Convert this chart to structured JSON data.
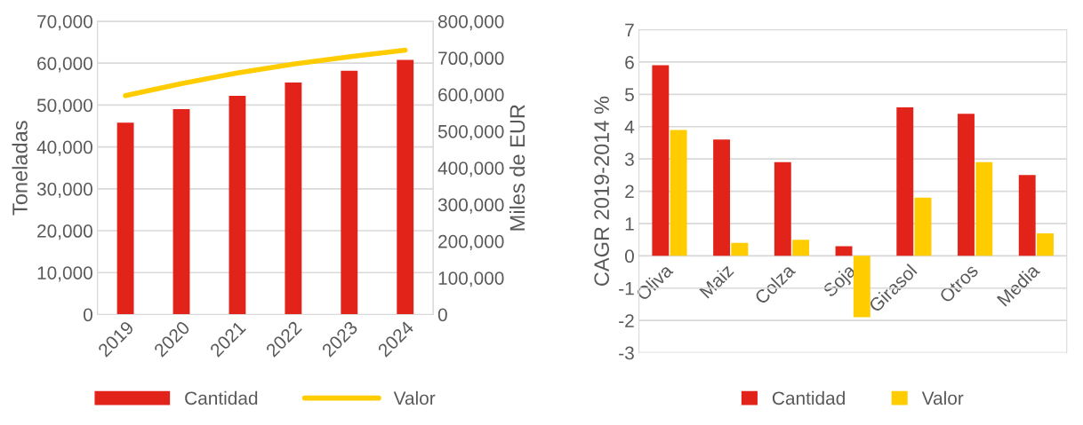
{
  "chart_data": [
    {
      "type": "bar",
      "categories": [
        "2019",
        "2020",
        "2021",
        "2022",
        "2023",
        "2024"
      ],
      "ylabel": "Toneladas",
      "y2label": "Miles de EUR",
      "series": [
        {
          "name": "Cantidad",
          "type": "bar",
          "color": "#e2231a",
          "values": [
            45800,
            49000,
            52200,
            55400,
            58200,
            60800
          ]
        },
        {
          "name": "Valor",
          "type": "line",
          "axis": "y2",
          "color": "#ffcc00",
          "values": [
            597000,
            630000,
            659000,
            683000,
            703000,
            721000
          ]
        }
      ],
      "ylim": [
        0,
        70000
      ],
      "yticks": [
        {
          "value": 0,
          "label": "0"
        },
        {
          "value": 10000,
          "label": "10,000"
        },
        {
          "value": 20000,
          "label": "20,000"
        },
        {
          "value": 30000,
          "label": "30,000"
        },
        {
          "value": 40000,
          "label": "40,000"
        },
        {
          "value": 50000,
          "label": "50,000"
        },
        {
          "value": 60000,
          "label": "60,000"
        },
        {
          "value": 70000,
          "label": "70,000"
        }
      ],
      "y2lim": [
        0,
        800000
      ],
      "y2ticks": [
        {
          "value": 0,
          "label": "0"
        },
        {
          "value": 100000,
          "label": "100,000"
        },
        {
          "value": 200000,
          "label": "200,000"
        },
        {
          "value": 300000,
          "label": "300,000"
        },
        {
          "value": 400000,
          "label": "400,000"
        },
        {
          "value": 500000,
          "label": "500,000"
        },
        {
          "value": 600000,
          "label": "600,000"
        },
        {
          "value": 700000,
          "label": "700,000"
        },
        {
          "value": 800000,
          "label": "800,000"
        }
      ],
      "grid": "y",
      "legend": "bottom",
      "marker": "none",
      "line_style": "solid"
    },
    {
      "type": "bar",
      "categories": [
        "Oliva",
        "Maiz",
        "Colza",
        "Soja",
        "Girasol",
        "Otros",
        "Media"
      ],
      "ylabel": "CAGR 2019-2014 %",
      "series": [
        {
          "name": "Cantidad",
          "color": "#e2231a",
          "values": [
            5.9,
            3.6,
            2.9,
            0.3,
            4.6,
            4.4,
            2.5
          ]
        },
        {
          "name": "Valor",
          "color": "#ffcc00",
          "values": [
            3.9,
            0.4,
            0.5,
            -1.9,
            1.8,
            2.9,
            0.7
          ]
        }
      ],
      "ylim": [
        -3,
        7
      ],
      "yticks": [
        -3,
        -2,
        -1,
        0,
        1,
        2,
        3,
        4,
        5,
        6,
        7
      ],
      "grid": "y",
      "legend": "bottom"
    }
  ]
}
